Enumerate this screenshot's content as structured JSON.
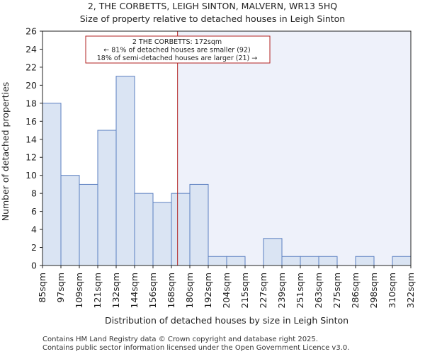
{
  "chart_data": {
    "type": "bar",
    "title": "2, THE CORBETTS, LEIGH SINTON, MALVERN, WR13 5HQ",
    "subtitle": "Size of property relative to detached houses in Leigh Sinton",
    "xlabel": "Distribution of detached houses by size in Leigh Sinton",
    "ylabel": "Number of detached properties",
    "ylim": [
      0,
      26
    ],
    "yticks": [
      0,
      2,
      4,
      6,
      8,
      10,
      12,
      14,
      16,
      18,
      20,
      22,
      24,
      26
    ],
    "bin_edges": [
      85,
      97,
      109,
      121,
      132,
      144,
      156,
      168,
      180,
      192,
      204,
      215,
      227,
      239,
      251,
      263,
      275,
      286,
      298,
      310,
      322
    ],
    "bin_edge_labels": [
      "85sqm",
      "97sqm",
      "109sqm",
      "121sqm",
      "132sqm",
      "144sqm",
      "156sqm",
      "168sqm",
      "180sqm",
      "192sqm",
      "204sqm",
      "215sqm",
      "227sqm",
      "239sqm",
      "251sqm",
      "263sqm",
      "275sqm",
      "286sqm",
      "298sqm",
      "310sqm",
      "322sqm"
    ],
    "values": [
      18,
      10,
      9,
      15,
      21,
      8,
      7,
      8,
      9,
      1,
      1,
      0,
      3,
      1,
      1,
      1,
      0,
      1,
      0,
      1
    ],
    "property_value": 172,
    "annotation": {
      "line1": "2 THE CORBETTS: 172sqm",
      "line2": "← 81% of detached houses are smaller (92)",
      "line3": "18% of semi-detached houses are larger (21) →"
    },
    "grid": false,
    "colors": {
      "bar_fill": "#dae4f3",
      "bar_stroke": "#5b7fc0",
      "marker_line": "#b22222",
      "highlight_bg": "#eef1fa"
    }
  },
  "footer": {
    "line1": "Contains HM Land Registry data © Crown copyright and database right 2025.",
    "line2": "Contains public sector information licensed under the Open Government Licence v3.0."
  }
}
